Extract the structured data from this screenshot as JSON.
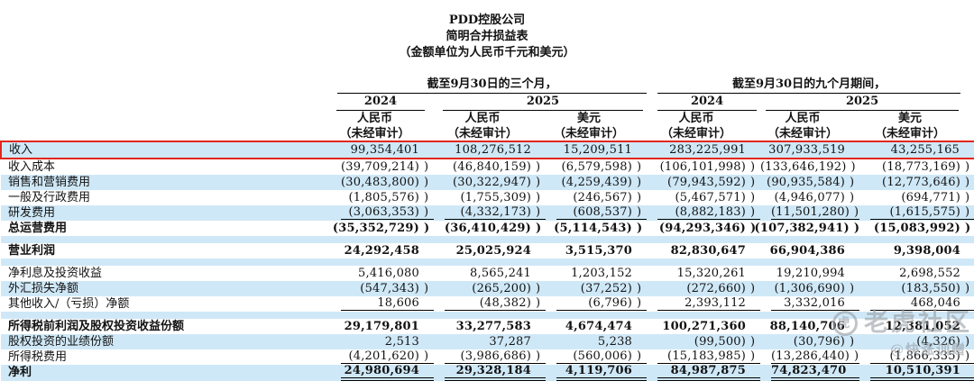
{
  "title": {
    "line1": "PDD控股公司",
    "line2": "简明合并损益表",
    "line3": "（金额单位为人民币千元和美元）"
  },
  "header": {
    "group_3m": "截至9月30日的三个月，",
    "group_9m": "截至9月30日的九个月期间，",
    "year_2024": "2024",
    "year_2025": "2025",
    "cur_rmb": "人民币",
    "cur_usd": "美元",
    "unaudited": "（未经审计）"
  },
  "table": {
    "columns": [
      "人民币 2024",
      "人民币 2025",
      "美元 2025",
      "人民币 2024",
      "人民币 2025",
      "美元 2025"
    ],
    "rows": [
      {
        "label": "收入",
        "shade": true,
        "highlight": true,
        "values": [
          "99,354,401",
          "108,276,512",
          "15,209,511",
          "283,225,991",
          "307,933,519",
          "43,255,165"
        ],
        "sfx": [
          "",
          "",
          "",
          "",
          "",
          ""
        ]
      },
      {
        "label": "收入成本",
        "values": [
          "(39,709,214)",
          "(46,840,159)",
          "(6,579,598)",
          "(106,101,998)",
          "(133,646,192)",
          "(18,773,169)"
        ],
        "sfx": [
          ")",
          ")",
          ")",
          ")",
          ")",
          ")"
        ]
      },
      {
        "label": "销售和营销费用",
        "shade": true,
        "values": [
          "(30,483,800)",
          "(30,322,947)",
          "(4,259,439)",
          "(79,943,592)",
          "(90,935,584)",
          "(12,773,646)"
        ],
        "sfx": [
          ")",
          ")",
          ")",
          ")",
          ")",
          ")"
        ]
      },
      {
        "label": "一般及行政费用",
        "values": [
          "(1,805,576)",
          "(1,755,309)",
          "(246,567)",
          "(5,467,571)",
          "(4,946,077)",
          "(694,771)"
        ],
        "sfx": [
          ")",
          ")",
          ")",
          ")",
          ")",
          ")"
        ]
      },
      {
        "label": "研发费用",
        "shade": true,
        "underline": "single",
        "values": [
          "(3,063,353)",
          "(4,332,173)",
          "(608,537)",
          "(8,882,183)",
          "(11,501,280)",
          "(1,615,575)"
        ],
        "sfx": [
          ")",
          ")",
          ")",
          ")",
          ")",
          ")"
        ]
      },
      {
        "label": "总运营费用",
        "bold": true,
        "values": [
          "(35,352,729)",
          "(36,410,429)",
          "(5,114,543)",
          "(94,293,346)",
          "(107,382,941)",
          "(15,083,992)"
        ],
        "sfx": [
          ")",
          ")",
          ")",
          ")",
          ")",
          ")"
        ]
      },
      {
        "spacer": true,
        "shade": true
      },
      {
        "label": "营业利润",
        "bold": true,
        "values": [
          "24,292,458",
          "25,025,924",
          "3,515,370",
          "82,830,647",
          "66,904,386",
          "9,398,004"
        ],
        "sfx": [
          "",
          "",
          "",
          "",
          "",
          ""
        ]
      },
      {
        "spacer": true,
        "shade": true
      },
      {
        "label": "净利息及投资收益",
        "values": [
          "5,416,080",
          "8,565,241",
          "1,203,152",
          "15,320,261",
          "19,210,994",
          "2,698,552"
        ],
        "sfx": [
          "",
          "",
          "",
          "",
          "",
          ""
        ]
      },
      {
        "label": "外汇损失净额",
        "shade": true,
        "values": [
          "(547,343)",
          "(265,200)",
          "(37,252)",
          "(272,660)",
          "(1,306,690)",
          "(183,550)"
        ],
        "sfx": [
          ")",
          ")",
          ")",
          ")",
          ")",
          ")"
        ]
      },
      {
        "label": "其他收入/（亏损）净额",
        "underline": "single",
        "values": [
          "18,606",
          "(48,382)",
          "(6,796)",
          "2,393,112",
          "3,332,016",
          "468,046"
        ],
        "sfx": [
          "",
          ")",
          ")",
          "",
          "",
          ""
        ]
      },
      {
        "spacer": true,
        "shade": true
      },
      {
        "label": "所得税前利润及股权投资收益份额",
        "bold": true,
        "values": [
          "29,179,801",
          "33,277,583",
          "4,674,474",
          "100,271,360",
          "88,140,706",
          "12,381,052"
        ],
        "sfx": [
          "",
          "",
          "",
          "",
          "",
          ""
        ]
      },
      {
        "label": "股权投资的业绩份额",
        "shade": true,
        "values": [
          "2,513",
          "37,287",
          "5,238",
          "(99,500)",
          "(30,796)",
          "(4,326)"
        ],
        "sfx": [
          "",
          "",
          "",
          ")",
          ")",
          ")"
        ]
      },
      {
        "label": "所得税费用",
        "underline": "single",
        "values": [
          "(4,201,620)",
          "(3,986,686)",
          "(560,006)",
          "(15,183,985)",
          "(13,286,440)",
          "(1,866,335)"
        ],
        "sfx": [
          ")",
          ")",
          ")",
          ")",
          ")",
          ")"
        ]
      },
      {
        "label": "净利",
        "shade": true,
        "bold": true,
        "underline": "double",
        "values": [
          "24,980,694",
          "29,328,184",
          "4,119,706",
          "84,987,875",
          "74,823,470",
          "10,510,391"
        ],
        "sfx": [
          "",
          "",
          "",
          "",
          "",
          ""
        ]
      }
    ]
  },
  "watermark": {
    "logo_text": "虎",
    "line1": "老虎社区",
    "line2": "@快涨训赠"
  },
  "colors": {
    "row_shade": "#cfe8f7",
    "highlight_border": "#e3261a",
    "watermark_gray": "#99a1a8",
    "text": "#121212"
  }
}
